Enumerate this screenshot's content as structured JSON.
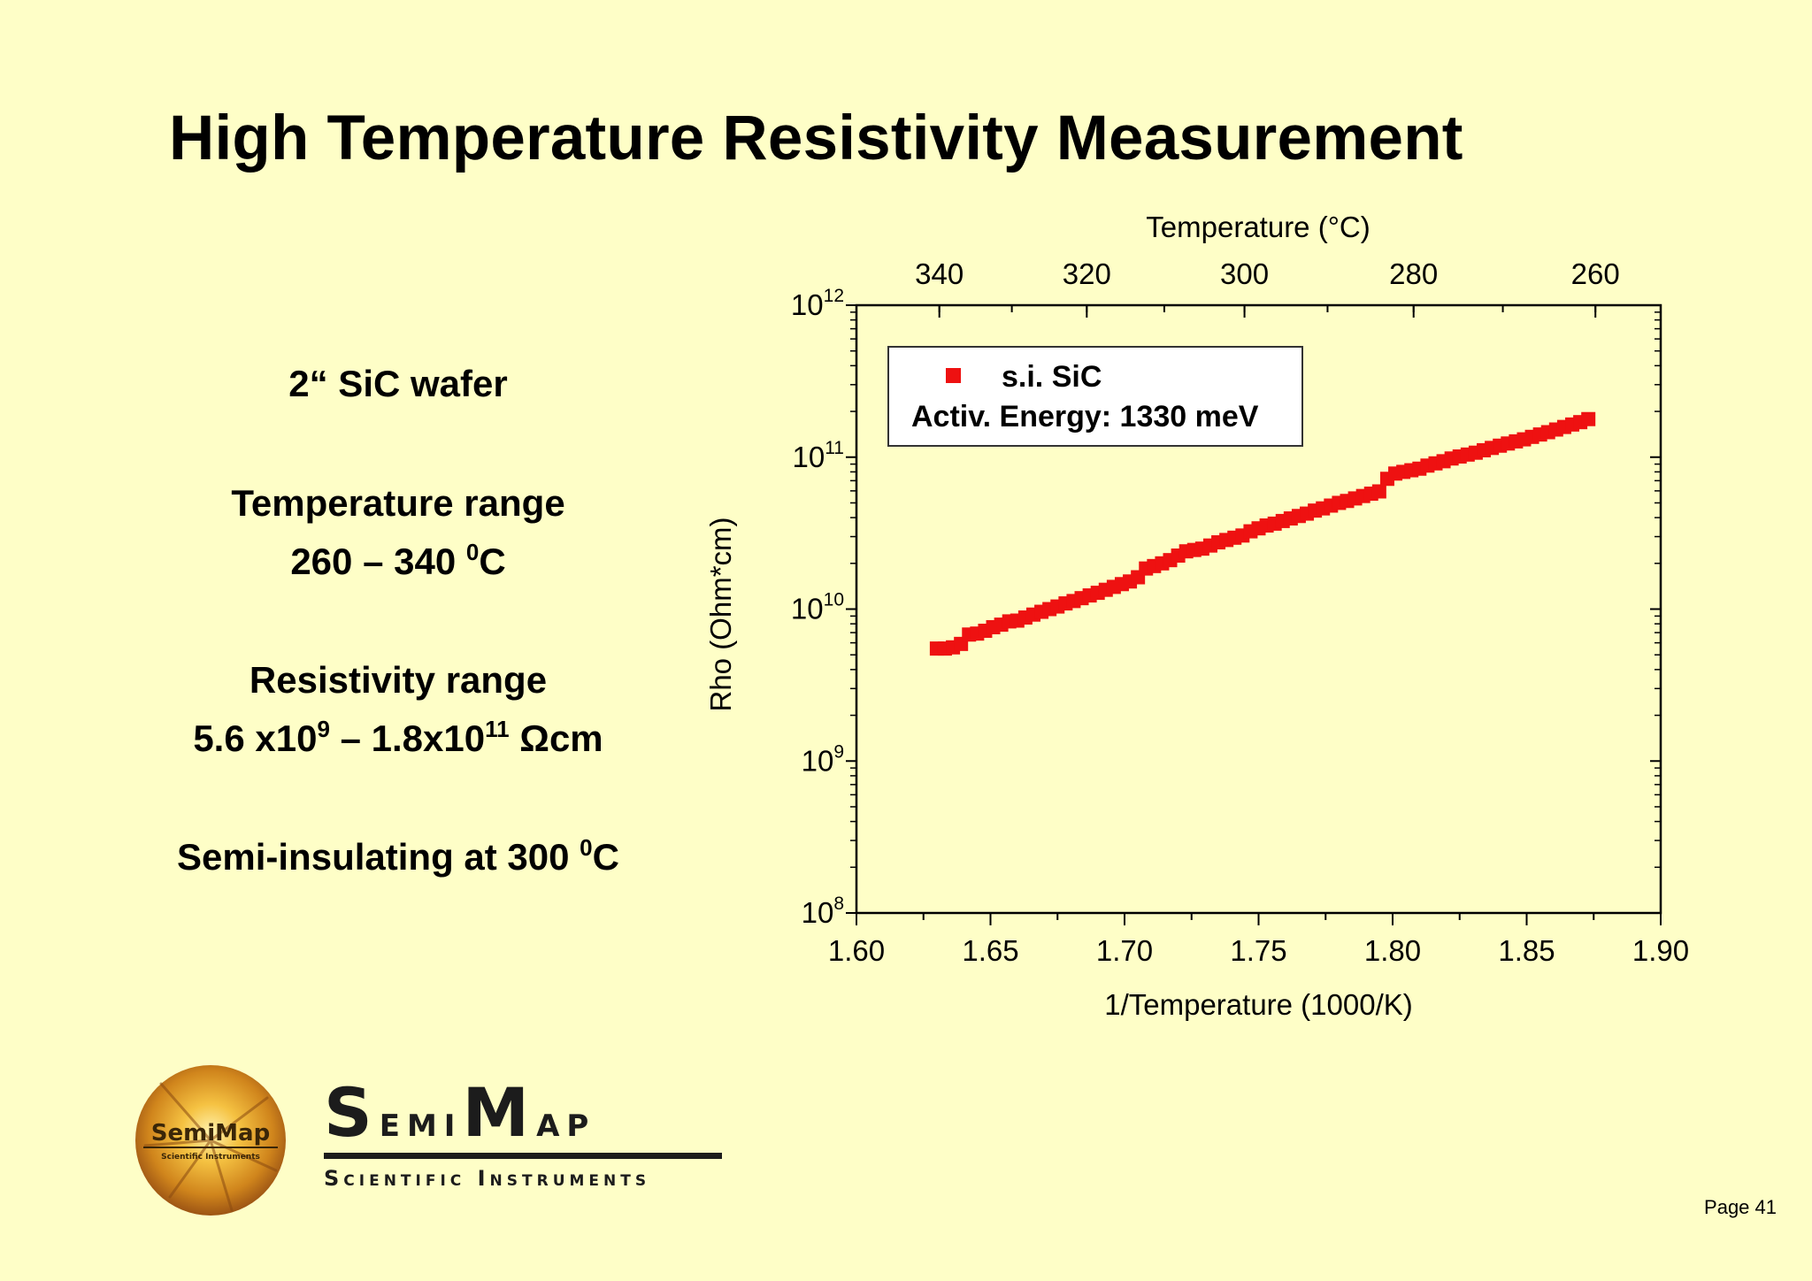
{
  "slide": {
    "title": "High Temperature Resistivity Measurement",
    "wafer": "2“ SiC wafer",
    "temp_range_label": "Temperature range",
    "temp_range_value": "260 – 340",
    "temp_unit_sup": "0",
    "temp_unit_c": "C",
    "res_range_label": "Resistivity range",
    "res_min_mant": "5.6 x10",
    "res_min_exp": "9",
    "res_dash": " – ",
    "res_max_mant": "1.8x10",
    "res_max_exp": "11",
    "res_unit": " Ωcm",
    "semi_text": "Semi-insulating at 300",
    "semi_unit_sup": "0",
    "semi_unit_c": "C",
    "page_number": "Page 41"
  },
  "logo": {
    "emblem_text": "SemiMap",
    "emblem_sub": "Scientific Instruments",
    "wordmark_first": "S",
    "wordmark_rest1": "emi",
    "wordmark_m": "M",
    "wordmark_rest2": "ap",
    "subtitle": "Scientific Instruments"
  },
  "chart_data": {
    "type": "scatter",
    "xlabel": "1/Temperature (1000/K)",
    "ylabel": "Rho (Ohm*cm)",
    "top_xlabel": "Temperature (°C)",
    "xlim": [
      1.6,
      1.9
    ],
    "ylim": [
      100000000,
      1000000000000
    ],
    "yscale": "log",
    "x_ticks": [
      "1.60",
      "1.65",
      "1.70",
      "1.75",
      "1.80",
      "1.85",
      "1.90"
    ],
    "y_ticks": [
      {
        "base": "10",
        "exp": "8",
        "value": 100000000
      },
      {
        "base": "10",
        "exp": "9",
        "value": 1000000000
      },
      {
        "base": "10",
        "exp": "10",
        "value": 10000000000
      },
      {
        "base": "10",
        "exp": "11",
        "value": 100000000000
      },
      {
        "base": "10",
        "exp": "12",
        "value": 1000000000000
      }
    ],
    "top_ticks": [
      {
        "label": "340",
        "celsius": 340
      },
      {
        "label": "320",
        "celsius": 320
      },
      {
        "label": "300",
        "celsius": 300
      },
      {
        "label": "280",
        "celsius": 280
      },
      {
        "label": "260",
        "celsius": 260
      }
    ],
    "legend": {
      "series_name": "s.i. SiC",
      "annotation": "Activ. Energy: 1330 meV",
      "position": "top-left"
    },
    "marker_color": "#ee1111",
    "series": [
      {
        "name": "s.i. SiC",
        "points": [
          [
            1.63,
            5500000000.0
          ],
          [
            1.633,
            5500000000.0
          ],
          [
            1.636,
            5600000000.0
          ],
          [
            1.639,
            5900000000.0
          ],
          [
            1.642,
            6800000000.0
          ],
          [
            1.645,
            6900000000.0
          ],
          [
            1.648,
            7200000000.0
          ],
          [
            1.651,
            7600000000.0
          ],
          [
            1.654,
            7900000000.0
          ],
          [
            1.657,
            8300000000.0
          ],
          [
            1.66,
            8400000000.0
          ],
          [
            1.663,
            8800000000.0
          ],
          [
            1.666,
            9200000000.0
          ],
          [
            1.669,
            9600000000.0
          ],
          [
            1.672,
            10000000000.0
          ],
          [
            1.675,
            10400000000.0
          ],
          [
            1.678,
            10900000000.0
          ],
          [
            1.681,
            11300000000.0
          ],
          [
            1.684,
            11800000000.0
          ],
          [
            1.687,
            12300000000.0
          ],
          [
            1.69,
            12800000000.0
          ],
          [
            1.693,
            13400000000.0
          ],
          [
            1.696,
            14000000000.0
          ],
          [
            1.699,
            14600000000.0
          ],
          [
            1.702,
            15200000000.0
          ],
          [
            1.705,
            16200000000.0
          ],
          [
            1.708,
            18500000000.0
          ],
          [
            1.711,
            19200000000.0
          ],
          [
            1.714,
            20000000000.0
          ],
          [
            1.717,
            21000000000.0
          ],
          [
            1.72,
            22500000000.0
          ],
          [
            1.723,
            24000000000.0
          ],
          [
            1.726,
            24500000000.0
          ],
          [
            1.729,
            25000000000.0
          ],
          [
            1.732,
            26200000000.0
          ],
          [
            1.735,
            27500000000.0
          ],
          [
            1.738,
            28500000000.0
          ],
          [
            1.741,
            29500000000.0
          ],
          [
            1.744,
            30500000000.0
          ],
          [
            1.747,
            32500000000.0
          ],
          [
            1.75,
            34000000000.0
          ],
          [
            1.753,
            35500000000.0
          ],
          [
            1.756,
            36500000000.0
          ],
          [
            1.759,
            38000000000.0
          ],
          [
            1.762,
            39500000000.0
          ],
          [
            1.765,
            41000000000.0
          ],
          [
            1.768,
            42500000000.0
          ],
          [
            1.771,
            44500000000.0
          ],
          [
            1.774,
            46000000000.0
          ],
          [
            1.777,
            48000000000.0
          ],
          [
            1.78,
            50000000000.0
          ],
          [
            1.783,
            51500000000.0
          ],
          [
            1.786,
            53500000000.0
          ],
          [
            1.789,
            55500000000.0
          ],
          [
            1.792,
            57500000000.0
          ],
          [
            1.795,
            59500000000.0
          ],
          [
            1.798,
            72000000000.0
          ],
          [
            1.801,
            78000000000.0
          ],
          [
            1.804,
            80000000000.0
          ],
          [
            1.807,
            82000000000.0
          ],
          [
            1.81,
            84000000000.0
          ],
          [
            1.813,
            88000000000.0
          ],
          [
            1.816,
            91000000000.0
          ],
          [
            1.819,
            94000000000.0
          ],
          [
            1.822,
            98000000000.0
          ],
          [
            1.825,
            101000000000.0
          ],
          [
            1.828,
            104000000000.0
          ],
          [
            1.831,
            107000000000.0
          ],
          [
            1.834,
            111000000000.0
          ],
          [
            1.837,
            115000000000.0
          ],
          [
            1.84,
            119000000000.0
          ],
          [
            1.843,
            123000000000.0
          ],
          [
            1.846,
            127000000000.0
          ],
          [
            1.849,
            131000000000.0
          ],
          [
            1.852,
            136000000000.0
          ],
          [
            1.855,
            141000000000.0
          ],
          [
            1.858,
            146000000000.0
          ],
          [
            1.861,
            152000000000.0
          ],
          [
            1.864,
            158000000000.0
          ],
          [
            1.867,
            164000000000.0
          ],
          [
            1.87,
            170000000000.0
          ],
          [
            1.873,
            178000000000.0
          ]
        ]
      }
    ]
  }
}
